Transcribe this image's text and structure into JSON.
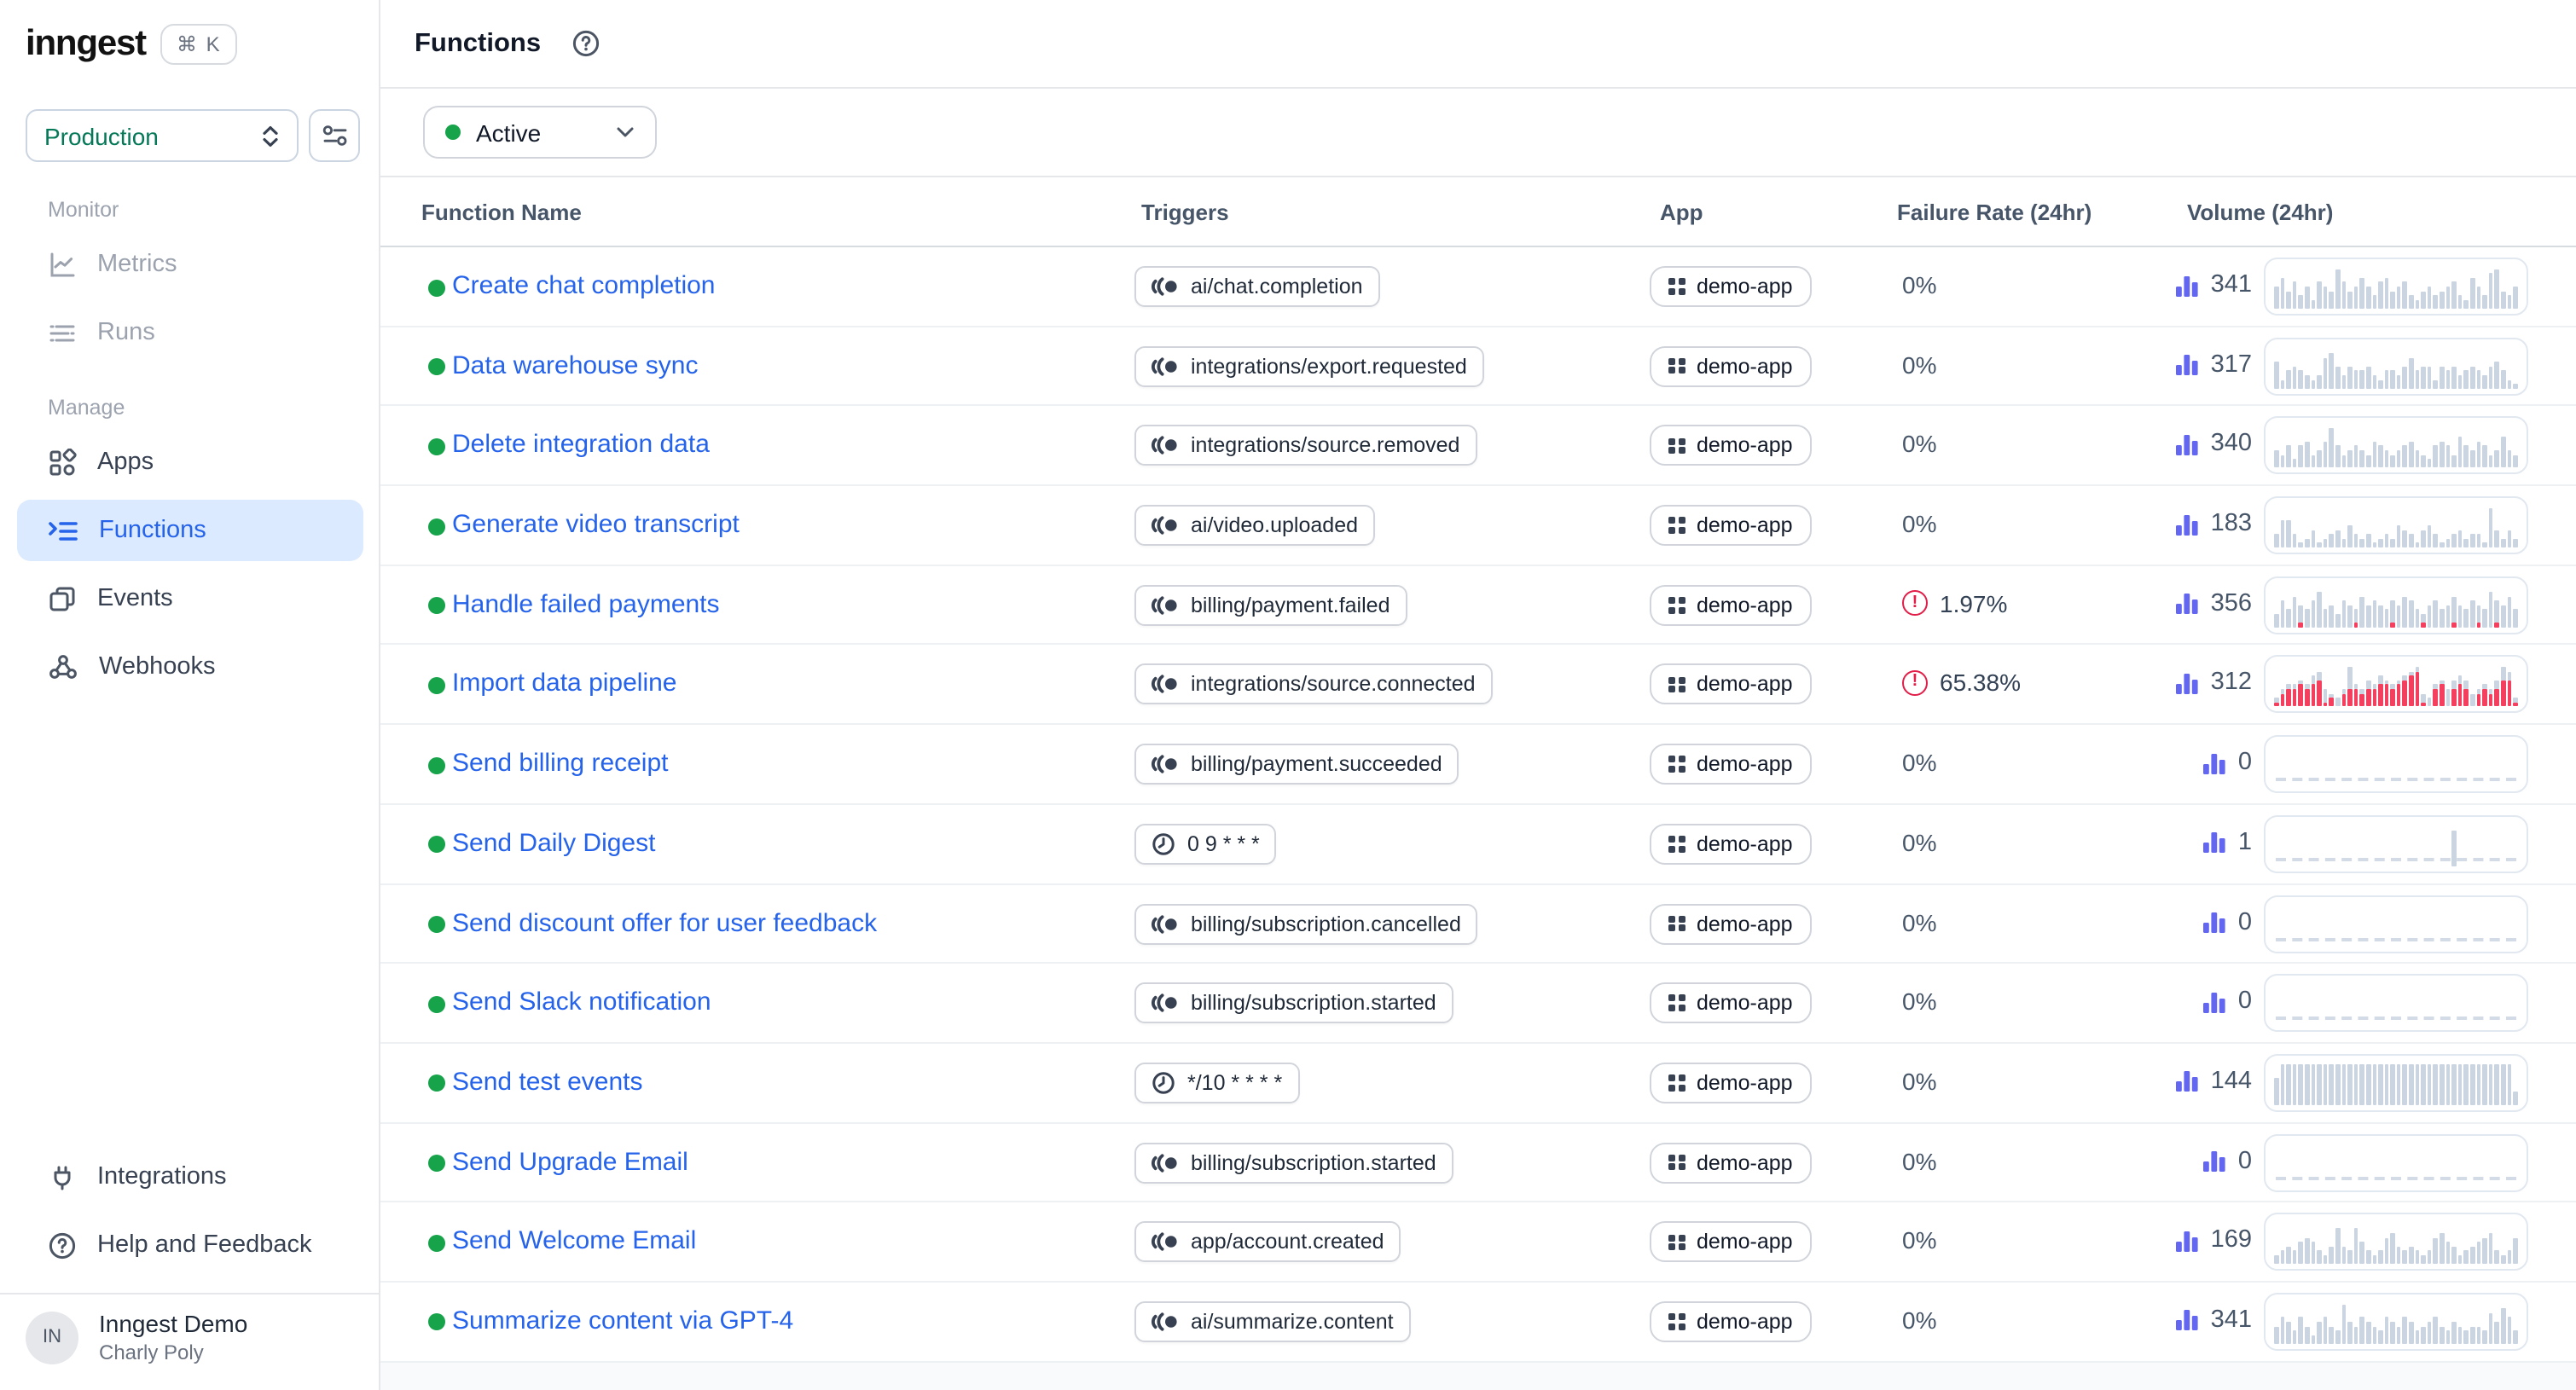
{
  "app": {
    "logo": "inngest",
    "shortcut": "⌘ K"
  },
  "sidebar": {
    "environment": "Production",
    "environment_color": "#047857",
    "sections": [
      {
        "label": "Monitor",
        "items": [
          {
            "label": "Metrics",
            "icon": "chart-line-icon",
            "state": "muted"
          },
          {
            "label": "Runs",
            "icon": "runs-list-icon",
            "state": "muted"
          }
        ]
      },
      {
        "label": "Manage",
        "items": [
          {
            "label": "Apps",
            "icon": "apps-icon",
            "state": "normal"
          },
          {
            "label": "Functions",
            "icon": "function-icon",
            "state": "active"
          },
          {
            "label": "Events",
            "icon": "events-icon",
            "state": "normal"
          },
          {
            "label": "Webhooks",
            "icon": "webhook-icon",
            "state": "normal"
          }
        ]
      }
    ],
    "footer_items": [
      {
        "label": "Integrations",
        "icon": "plug-icon"
      },
      {
        "label": "Help and Feedback",
        "icon": "help-icon"
      }
    ],
    "account": {
      "initials": "IN",
      "org": "Inngest Demo",
      "user": "Charly Poly"
    }
  },
  "header": {
    "title": "Functions",
    "help_icon": "help-circle-icon"
  },
  "filters": {
    "status": {
      "label": "Active",
      "dot_color": "#16a34a"
    }
  },
  "table": {
    "columns": [
      "Function Name",
      "Triggers",
      "App",
      "Failure Rate (24hr)",
      "Volume (24hr)"
    ],
    "status_dot_color": "#16a34a",
    "link_color": "#2563eb",
    "volume_icon_color": "#6366f1",
    "alert_color": "#e11d48",
    "spark_bar_color": "#cbd5e1",
    "spark_fail_color": "#f43f5e",
    "rows": [
      {
        "name": "Create chat completion",
        "trigger": {
          "type": "event",
          "value": "ai/chat.completion"
        },
        "app": "demo-app",
        "failure_rate": "0%",
        "alert": false,
        "volume": "341",
        "spark": {
          "h": [
            5,
            7,
            4,
            6,
            3,
            5,
            2,
            6,
            5,
            4,
            9,
            6,
            4,
            5,
            7,
            5,
            3,
            6,
            7,
            4,
            5,
            6,
            3,
            2,
            4,
            5,
            3,
            4,
            5,
            6,
            3,
            2,
            7,
            5,
            3,
            8,
            9,
            4,
            3,
            5
          ]
        }
      },
      {
        "name": "Data warehouse sync",
        "trigger": {
          "type": "event",
          "value": "integrations/export.requested"
        },
        "app": "demo-app",
        "failure_rate": "0%",
        "alert": false,
        "volume": "317",
        "spark": {
          "h": [
            6,
            2,
            4,
            5,
            4,
            3,
            2,
            3,
            7,
            8,
            5,
            3,
            5,
            4,
            4,
            5,
            3,
            2,
            4,
            4,
            3,
            5,
            7,
            4,
            5,
            5,
            2,
            5,
            4,
            5,
            3,
            4,
            5,
            4,
            3,
            5,
            6,
            4,
            2,
            1
          ]
        }
      },
      {
        "name": "Delete integration data",
        "trigger": {
          "type": "event",
          "value": "integrations/source.removed"
        },
        "app": "demo-app",
        "failure_rate": "0%",
        "alert": false,
        "volume": "340",
        "spark": {
          "h": [
            4,
            3,
            5,
            2,
            5,
            6,
            3,
            4,
            6,
            9,
            5,
            3,
            4,
            5,
            4,
            3,
            6,
            5,
            4,
            3,
            4,
            5,
            6,
            4,
            3,
            2,
            5,
            6,
            5,
            3,
            7,
            5,
            4,
            6,
            5,
            3,
            4,
            7,
            4,
            3
          ]
        }
      },
      {
        "name": "Generate video transcript",
        "trigger": {
          "type": "event",
          "value": "ai/video.uploaded"
        },
        "app": "demo-app",
        "failure_rate": "0%",
        "alert": false,
        "volume": "183",
        "spark": {
          "h": [
            3,
            6,
            6,
            3,
            1,
            2,
            4,
            1,
            2,
            3,
            4,
            2,
            5,
            3,
            2,
            3,
            1,
            2,
            3,
            2,
            5,
            4,
            3,
            1,
            4,
            5,
            3,
            1,
            2,
            3,
            4,
            2,
            3,
            3,
            1,
            9,
            4,
            2,
            4,
            2
          ]
        }
      },
      {
        "name": "Handle failed payments",
        "trigger": {
          "type": "event",
          "value": "billing/payment.failed"
        },
        "app": "demo-app",
        "failure_rate": "1.97%",
        "alert": true,
        "volume": "356",
        "spark": {
          "h": [
            3,
            6,
            4,
            7,
            5,
            4,
            6,
            8,
            4,
            5,
            3,
            6,
            5,
            4,
            7,
            5,
            6,
            5,
            4,
            6,
            5,
            7,
            6,
            4,
            3,
            5,
            6,
            4,
            5,
            7,
            5,
            4,
            6,
            5,
            4,
            8,
            6,
            5,
            7,
            4
          ],
          "r": [
            0,
            0,
            0,
            0,
            1,
            0,
            0,
            0,
            0,
            0,
            0,
            0,
            0,
            1,
            0,
            0,
            0,
            0,
            0,
            1,
            0,
            0,
            0,
            0,
            1,
            0,
            0,
            0,
            0,
            1,
            0,
            0,
            0,
            1,
            0,
            0,
            1,
            0,
            0,
            0
          ]
        }
      },
      {
        "name": "Import data pipeline",
        "trigger": {
          "type": "event",
          "value": "integrations/source.connected"
        },
        "app": "demo-app",
        "failure_rate": "65.38%",
        "alert": true,
        "volume": "312",
        "spark": {
          "h": [
            2,
            4,
            5,
            5,
            6,
            5,
            7,
            8,
            4,
            3,
            2,
            4,
            9,
            5,
            4,
            6,
            5,
            7,
            6,
            5,
            6,
            7,
            8,
            9,
            3,
            2,
            5,
            6,
            4,
            6,
            7,
            6,
            3,
            4,
            5,
            4,
            6,
            9,
            8,
            2
          ],
          "r": [
            1,
            3,
            4,
            4,
            5,
            4,
            5,
            6,
            1,
            2,
            0,
            3,
            4,
            4,
            3,
            4,
            4,
            5,
            5,
            4,
            5,
            6,
            7,
            8,
            1,
            0,
            4,
            5,
            0,
            4,
            5,
            4,
            0,
            3,
            4,
            3,
            4,
            6,
            6,
            1
          ]
        }
      },
      {
        "name": "Send billing receipt",
        "trigger": {
          "type": "event",
          "value": "billing/payment.succeeded"
        },
        "app": "demo-app",
        "failure_rate": "0%",
        "alert": false,
        "volume": "0",
        "spark": {
          "h": []
        }
      },
      {
        "name": "Send Daily Digest",
        "trigger": {
          "type": "cron",
          "value": "0 9 * * *"
        },
        "app": "demo-app",
        "failure_rate": "0%",
        "alert": false,
        "volume": "1",
        "spark": {
          "h": [
            0,
            0,
            0,
            0,
            0,
            0,
            0,
            0,
            0,
            0,
            0,
            0,
            0,
            0,
            0,
            0,
            0,
            0,
            0,
            0,
            0,
            0,
            0,
            0,
            0,
            0,
            0,
            0,
            0,
            8,
            0,
            0,
            0,
            0,
            0,
            0,
            0,
            0,
            0,
            0
          ]
        }
      },
      {
        "name": "Send discount offer for user feedback",
        "trigger": {
          "type": "event",
          "value": "billing/subscription.cancelled"
        },
        "app": "demo-app",
        "failure_rate": "0%",
        "alert": false,
        "volume": "0",
        "spark": {
          "h": []
        }
      },
      {
        "name": "Send Slack notification",
        "trigger": {
          "type": "event",
          "value": "billing/subscription.started"
        },
        "app": "demo-app",
        "failure_rate": "0%",
        "alert": false,
        "volume": "0",
        "spark": {
          "h": []
        }
      },
      {
        "name": "Send test events",
        "trigger": {
          "type": "cron",
          "value": "*/10 * * * *"
        },
        "app": "demo-app",
        "failure_rate": "0%",
        "alert": false,
        "volume": "144",
        "spark": {
          "h": [
            6,
            9,
            9,
            9,
            9,
            9,
            9,
            9,
            9,
            9,
            9,
            9,
            9,
            9,
            9,
            9,
            9,
            9,
            9,
            9,
            9,
            9,
            9,
            9,
            9,
            9,
            9,
            9,
            9,
            9,
            9,
            9,
            9,
            9,
            9,
            9,
            9,
            9,
            9,
            3
          ]
        }
      },
      {
        "name": "Send Upgrade Email",
        "trigger": {
          "type": "event",
          "value": "billing/subscription.started"
        },
        "app": "demo-app",
        "failure_rate": "0%",
        "alert": false,
        "volume": "0",
        "spark": {
          "h": []
        }
      },
      {
        "name": "Send Welcome Email",
        "trigger": {
          "type": "event",
          "value": "app/account.created"
        },
        "app": "demo-app",
        "failure_rate": "0%",
        "alert": false,
        "volume": "169",
        "spark": {
          "h": [
            2,
            3,
            4,
            3,
            5,
            6,
            5,
            3,
            2,
            4,
            8,
            4,
            3,
            8,
            5,
            3,
            2,
            3,
            6,
            7,
            4,
            3,
            4,
            3,
            2,
            3,
            6,
            7,
            5,
            4,
            2,
            3,
            4,
            5,
            6,
            7,
            3,
            2,
            3,
            6
          ]
        }
      },
      {
        "name": "Summarize content via GPT-4",
        "trigger": {
          "type": "event",
          "value": "ai/summarize.content"
        },
        "app": "demo-app",
        "failure_rate": "0%",
        "alert": false,
        "volume": "341",
        "spark": {
          "h": [
            4,
            6,
            5,
            3,
            6,
            4,
            2,
            5,
            6,
            4,
            3,
            9,
            5,
            4,
            6,
            5,
            4,
            3,
            6,
            5,
            4,
            6,
            5,
            3,
            4,
            5,
            6,
            4,
            3,
            5,
            4,
            3,
            4,
            4,
            3,
            7,
            5,
            8,
            6,
            3
          ]
        }
      }
    ]
  }
}
